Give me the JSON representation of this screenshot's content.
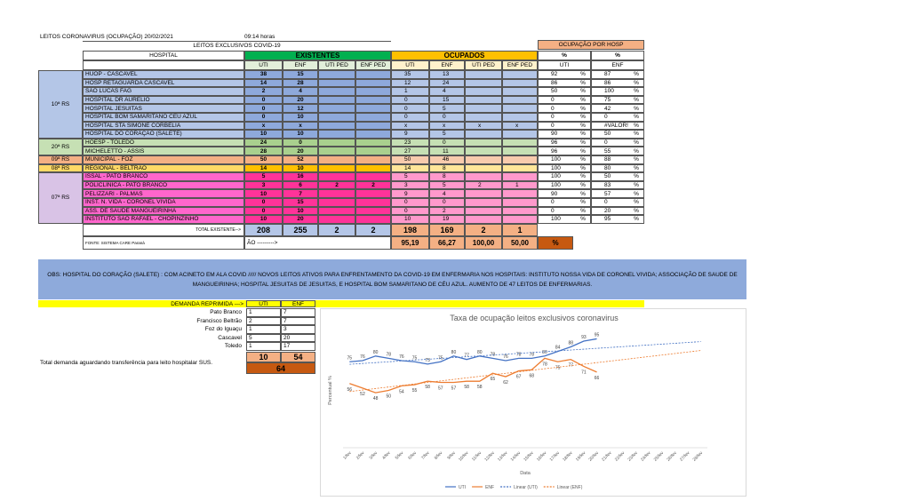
{
  "header": {
    "title": "LEITOS CORONAVIRUS (OCUPAÇÃO) 20/02/2021",
    "time": "09:14 horas",
    "subtitle": "LEITOS EXCLUSIVOS COVID-19"
  },
  "table": {
    "hospital_header": "HOSPITAL",
    "existentes_header": "EXISTENTES",
    "ocupados_header": "OCUPADOS",
    "ocupacao_header": "OCUPAÇÃO POR HOSP",
    "subheaders": [
      "UTI",
      "ENF",
      "UTI PED",
      "ENF PED"
    ],
    "pct_headers": [
      "%",
      "%"
    ],
    "pct_subheaders": [
      "UTI",
      "ENF"
    ],
    "unit": "%",
    "regions": [
      {
        "label": "10ª RS",
        "rows": [
          {
            "hospital": "HUOP - CASCAVEL",
            "existentes": [
              38,
              15,
              null,
              null
            ],
            "ocupados": [
              35,
              13,
              null,
              null
            ],
            "pct": [
              92,
              87
            ]
          },
          {
            "hospital": "HOSP RETAGUARDA CASCAVEL",
            "existentes": [
              14,
              28,
              null,
              null
            ],
            "ocupados": [
              12,
              24,
              null,
              null
            ],
            "pct": [
              86,
              86
            ]
          },
          {
            "hospital": "SÃO LUCAS FAG",
            "existentes": [
              2,
              4,
              null,
              null
            ],
            "ocupados": [
              1,
              4,
              null,
              null
            ],
            "pct": [
              50,
              100
            ]
          },
          {
            "hospital": "HOSPITAL DR AURELIO",
            "existentes": [
              0,
              20,
              null,
              null
            ],
            "ocupados": [
              0,
              15,
              null,
              null
            ],
            "pct": [
              0,
              75
            ]
          },
          {
            "hospital": "HOSPITAL JESUITAS",
            "existentes": [
              0,
              12,
              null,
              null
            ],
            "ocupados": [
              0,
              5,
              null,
              null
            ],
            "pct": [
              0,
              42
            ]
          },
          {
            "hospital": "HOSPITAL BOM SAMARITANO CEU AZUL",
            "existentes": [
              0,
              10,
              null,
              null
            ],
            "ocupados": [
              0,
              0,
              null,
              null
            ],
            "pct": [
              0,
              0
            ]
          },
          {
            "hospital": "HOSPITAL STA SIMONE CORBELIA",
            "existentes": [
              "x",
              "x",
              null,
              null
            ],
            "ocupados": [
              "x",
              "x",
              "x",
              "x"
            ],
            "pct": [
              0,
              "#VALOR!"
            ]
          },
          {
            "hospital": "HOSPITAL DO CORAÇÃO (SALETE)",
            "existentes": [
              10,
              10,
              null,
              null
            ],
            "ocupados": [
              9,
              5,
              null,
              null
            ],
            "pct": [
              90,
              50
            ]
          }
        ]
      },
      {
        "label": "20ª RS",
        "rows": [
          {
            "hospital": "HOESP - TOLEDO",
            "existentes": [
              24,
              0,
              null,
              null
            ],
            "ocupados": [
              23,
              0,
              null,
              null
            ],
            "pct": [
              96,
              0
            ]
          },
          {
            "hospital": "MICHELETTO - ASSIS",
            "existentes": [
              28,
              20,
              null,
              null
            ],
            "ocupados": [
              27,
              11,
              null,
              null
            ],
            "pct": [
              96,
              55
            ]
          }
        ]
      },
      {
        "label": "09ª RS",
        "rows": [
          {
            "hospital": "MUNICIPAL - FOZ",
            "existentes": [
              50,
              52,
              null,
              null
            ],
            "ocupados": [
              50,
              46,
              null,
              null
            ],
            "pct": [
              100,
              88
            ]
          }
        ]
      },
      {
        "label": "08ª RS",
        "rows": [
          {
            "hospital": "REGIONAL - BELTRAO",
            "existentes": [
              14,
              10,
              null,
              null
            ],
            "ocupados": [
              14,
              8,
              null,
              null
            ],
            "pct": [
              100,
              80
            ]
          }
        ]
      },
      {
        "label": "07ª RS",
        "rows": [
          {
            "hospital": "ISSAL - PATO BRANCO",
            "existentes": [
              5,
              16,
              null,
              null
            ],
            "ocupados": [
              5,
              8,
              null,
              null
            ],
            "pct": [
              100,
              50
            ]
          },
          {
            "hospital": "POLICLINICA - PATO BRANCO",
            "existentes": [
              3,
              6,
              2,
              2
            ],
            "ocupados": [
              3,
              5,
              2,
              1
            ],
            "pct": [
              100,
              83
            ]
          },
          {
            "hospital": "PELIZZARI - PALMAS",
            "existentes": [
              10,
              7,
              null,
              null
            ],
            "ocupados": [
              9,
              4,
              null,
              null
            ],
            "pct": [
              90,
              57
            ]
          },
          {
            "hospital": "INST. N. VIDA - CORONEL VIVIDA",
            "existentes": [
              0,
              15,
              null,
              null
            ],
            "ocupados": [
              0,
              0,
              null,
              null
            ],
            "pct": [
              0,
              0
            ]
          },
          {
            "hospital": "ASS. DE SAUDE MANGUEIRINHA",
            "existentes": [
              0,
              10,
              null,
              null
            ],
            "ocupados": [
              0,
              2,
              null,
              null
            ],
            "pct": [
              0,
              20
            ]
          },
          {
            "hospital": "INSTITUTO SÃO RAFAEL - CHOPINZINHO",
            "existentes": [
              10,
              20,
              null,
              null
            ],
            "ocupados": [
              10,
              19,
              null,
              null
            ],
            "pct": [
              100,
              95
            ]
          }
        ]
      }
    ],
    "total": {
      "label": "TOTAL EXISTENTE-->",
      "existentes": [
        208,
        255,
        2,
        2
      ],
      "ocupados": [
        198,
        169,
        2,
        1
      ]
    },
    "footer": {
      "source": "FONTE: SISTEMA CARE Paraná",
      "arrow": "ÃO --------->",
      "rates": [
        "95,19",
        "66,27",
        "100,00",
        "50,00"
      ],
      "unit": "%"
    }
  },
  "obs": "OBS: HOSPITAL DO CORAÇÃO (SALETE) : COM ACINETO EM ALA COVID   /////   NOVOS LEITOS ATIVOS PARA ENFRENTAMENTO DA COVID-19 EM ENFERMARIA NOS HOSPITAIS: INSTITUTO NOSSA VIDA DE CORONEL VIVIDA; ASSOCIAÇÃO DE SAUDE DE MANGUEIRINHA; HOSPITAL JESUITAS DE JESUITAS, E HOSPITAL BOM SAMARITANO DE CÉU AZUL.  AUMENTO DE 47 LEITOS DE ENFERMARIAS.",
  "demand": {
    "title": "DEMANDA REPRIMIDA --->",
    "columns": [
      "UTI",
      "ENF"
    ],
    "rows": [
      {
        "city": "Pato Branco",
        "values": [
          1,
          7
        ]
      },
      {
        "city": "Francisco Beltrão",
        "values": [
          2,
          7
        ]
      },
      {
        "city": "Foz do Iguaçu",
        "values": [
          1,
          3
        ]
      },
      {
        "city": "Cascavel",
        "values": [
          5,
          20
        ]
      },
      {
        "city": "Toledo",
        "values": [
          1,
          17
        ]
      }
    ],
    "totals": [
      10,
      54
    ],
    "grand_total": 64,
    "note": "Total demanda aguardando transferência para leito hospitalar SUS."
  },
  "chart_data": {
    "type": "line",
    "title": "Taxa de ocupação leitos exclusivos coronavirus",
    "y_label": "Percentual %",
    "x_label": "Data",
    "categories": [
      "1/fev",
      "2/fev",
      "3/fev",
      "4/fev",
      "5/fev",
      "6/fev",
      "7/fev",
      "8/fev",
      "9/fev",
      "10/fev",
      "11/fev",
      "12/fev",
      "13/fev",
      "14/fev",
      "15/fev",
      "16/fev",
      "17/fev",
      "18/fev",
      "19/fev",
      "20/fev",
      "21/fev",
      "22/fev",
      "23/fev",
      "24/fev",
      "25/fev",
      "26/fev",
      "27/fev",
      "28/fev"
    ],
    "series": [
      {
        "name": "UTI",
        "color": "#4472c4",
        "values": [
          75,
          76,
          80,
          78,
          76,
          75,
          73,
          75,
          80,
          77,
          80,
          78,
          76,
          78,
          78,
          80,
          84,
          88,
          93,
          95,
          null,
          null,
          null,
          null,
          null,
          null,
          null,
          null
        ]
      },
      {
        "name": "ENF",
        "color": "#ed7d31",
        "values": [
          56,
          52,
          48,
          50,
          54,
          55,
          58,
          57,
          57,
          58,
          58,
          65,
          62,
          67,
          68,
          78,
          75,
          77,
          71,
          66,
          null,
          null,
          null,
          null,
          null,
          null,
          null,
          null
        ]
      }
    ],
    "trendlines": [
      {
        "name": "Linear (UTI)",
        "series": 0,
        "color": "#4472c4"
      },
      {
        "name": "Linear (ENF)",
        "series": 1,
        "color": "#ed7d31"
      }
    ],
    "ylim": [
      0,
      100
    ],
    "legend": "bottom"
  }
}
